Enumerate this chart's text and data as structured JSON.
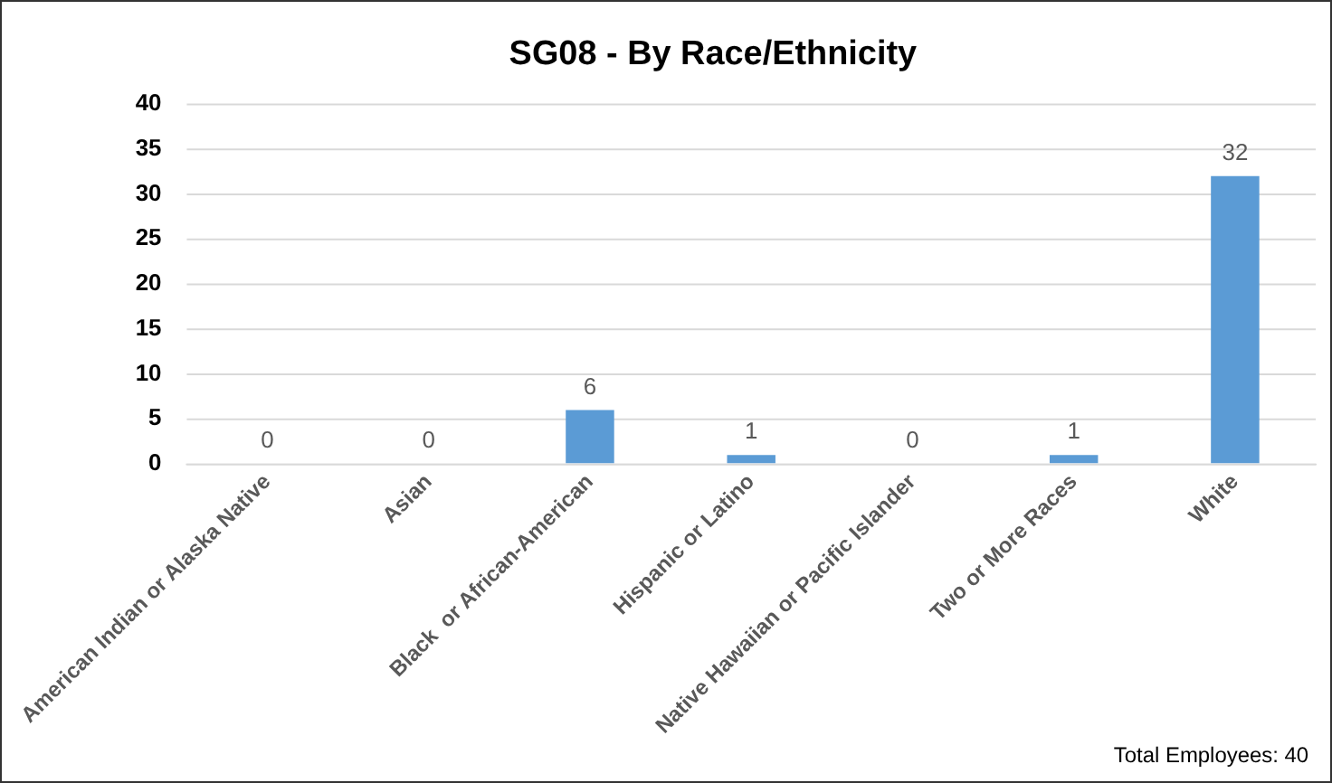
{
  "chart_data": {
    "type": "bar",
    "title": "SG08 - By Race/Ethnicity",
    "categories": [
      "American Indian or Alaska Native",
      "Asian",
      "Black  or African-American",
      "Hispanic or Latino",
      "Native Hawaiian or Pacific Islander",
      "Two or More Races",
      "White"
    ],
    "values": [
      0,
      0,
      6,
      1,
      0,
      1,
      32
    ],
    "color": "#5b9bd5",
    "ylim": [
      0,
      40
    ],
    "yticks": [
      0,
      5,
      10,
      15,
      20,
      25,
      30,
      35,
      40
    ],
    "grid": "y",
    "legend": false,
    "data_labels": true,
    "annotations": [
      "Total Employees: 40"
    ]
  }
}
